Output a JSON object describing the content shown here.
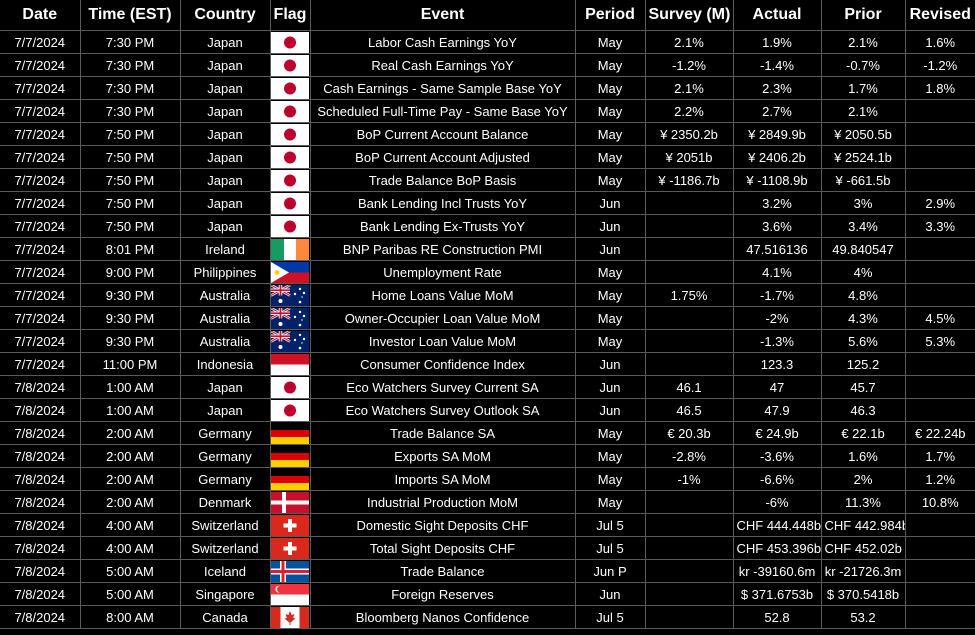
{
  "headers": {
    "date": "Date",
    "time": "Time (EST)",
    "country": "Country",
    "flag": "Flag",
    "event": "Event",
    "period": "Period",
    "survey": "Survey (M)",
    "actual": "Actual",
    "prior": "Prior",
    "revised": "Revised"
  },
  "rows": [
    {
      "date": "7/7/2024",
      "time": "7:30 PM",
      "country": "Japan",
      "flag": "japan-flag-icon",
      "event": "Labor Cash Earnings YoY",
      "period": "May",
      "survey": "2.1%",
      "actual": "1.9%",
      "prior": "2.1%",
      "revised": "1.6%"
    },
    {
      "date": "7/7/2024",
      "time": "7:30 PM",
      "country": "Japan",
      "flag": "japan-flag-icon",
      "event": "Real Cash Earnings YoY",
      "period": "May",
      "survey": "-1.2%",
      "actual": "-1.4%",
      "prior": "-0.7%",
      "revised": "-1.2%"
    },
    {
      "date": "7/7/2024",
      "time": "7:30 PM",
      "country": "Japan",
      "flag": "japan-flag-icon",
      "event": "Cash Earnings - Same Sample Base YoY",
      "period": "May",
      "survey": "2.1%",
      "actual": "2.3%",
      "prior": "1.7%",
      "revised": "1.8%"
    },
    {
      "date": "7/7/2024",
      "time": "7:30 PM",
      "country": "Japan",
      "flag": "japan-flag-icon",
      "event": "Scheduled Full-Time Pay - Same Base YoY",
      "period": "May",
      "survey": "2.2%",
      "actual": "2.7%",
      "prior": "2.1%",
      "revised": ""
    },
    {
      "date": "7/7/2024",
      "time": "7:50 PM",
      "country": "Japan",
      "flag": "japan-flag-icon",
      "event": "BoP Current Account Balance",
      "period": "May",
      "survey": "¥ 2350.2b",
      "actual": "¥ 2849.9b",
      "prior": "¥ 2050.5b",
      "revised": ""
    },
    {
      "date": "7/7/2024",
      "time": "7:50 PM",
      "country": "Japan",
      "flag": "japan-flag-icon",
      "event": "BoP Current Account Adjusted",
      "period": "May",
      "survey": "¥ 2051b",
      "actual": "¥ 2406.2b",
      "prior": "¥ 2524.1b",
      "revised": ""
    },
    {
      "date": "7/7/2024",
      "time": "7:50 PM",
      "country": "Japan",
      "flag": "japan-flag-icon",
      "event": "Trade Balance BoP Basis",
      "period": "May",
      "survey": "¥ -1186.7b",
      "actual": "¥ -1108.9b",
      "prior": "¥ -661.5b",
      "revised": ""
    },
    {
      "date": "7/7/2024",
      "time": "7:50 PM",
      "country": "Japan",
      "flag": "japan-flag-icon",
      "event": "Bank Lending Incl Trusts YoY",
      "period": "Jun",
      "survey": "",
      "actual": "3.2%",
      "prior": "3%",
      "revised": "2.9%"
    },
    {
      "date": "7/7/2024",
      "time": "7:50 PM",
      "country": "Japan",
      "flag": "japan-flag-icon",
      "event": "Bank Lending Ex-Trusts YoY",
      "period": "Jun",
      "survey": "",
      "actual": "3.6%",
      "prior": "3.4%",
      "revised": "3.3%"
    },
    {
      "date": "7/7/2024",
      "time": "8:01 PM",
      "country": "Ireland",
      "flag": "ireland-flag-icon",
      "event": "BNP Paribas RE Construction PMI",
      "period": "Jun",
      "survey": "",
      "actual": "47.516136",
      "prior": "49.840547",
      "revised": ""
    },
    {
      "date": "7/7/2024",
      "time": "9:00 PM",
      "country": "Philippines",
      "flag": "philippines-flag-icon",
      "event": "Unemployment Rate",
      "period": "May",
      "survey": "",
      "actual": "4.1%",
      "prior": "4%",
      "revised": ""
    },
    {
      "date": "7/7/2024",
      "time": "9:30 PM",
      "country": "Australia",
      "flag": "australia-flag-icon",
      "event": "Home Loans Value MoM",
      "period": "May",
      "survey": "1.75%",
      "actual": "-1.7%",
      "prior": "4.8%",
      "revised": ""
    },
    {
      "date": "7/7/2024",
      "time": "9:30 PM",
      "country": "Australia",
      "flag": "australia-flag-icon",
      "event": "Owner-Occupier Loan Value MoM",
      "period": "May",
      "survey": "",
      "actual": "-2%",
      "prior": "4.3%",
      "revised": "4.5%"
    },
    {
      "date": "7/7/2024",
      "time": "9:30 PM",
      "country": "Australia",
      "flag": "australia-flag-icon",
      "event": "Investor Loan Value MoM",
      "period": "May",
      "survey": "",
      "actual": "-1.3%",
      "prior": "5.6%",
      "revised": "5.3%"
    },
    {
      "date": "7/7/2024",
      "time": "11:00 PM",
      "country": "Indonesia",
      "flag": "indonesia-flag-icon",
      "event": "Consumer Confidence Index",
      "period": "Jun",
      "survey": "",
      "actual": "123.3",
      "prior": "125.2",
      "revised": ""
    },
    {
      "date": "7/8/2024",
      "time": "1:00 AM",
      "country": "Japan",
      "flag": "japan-flag-icon",
      "event": "Eco Watchers Survey Current SA",
      "period": "Jun",
      "survey": "46.1",
      "actual": "47",
      "prior": "45.7",
      "revised": ""
    },
    {
      "date": "7/8/2024",
      "time": "1:00 AM",
      "country": "Japan",
      "flag": "japan-flag-icon",
      "event": "Eco Watchers Survey Outlook SA",
      "period": "Jun",
      "survey": "46.5",
      "actual": "47.9",
      "prior": "46.3",
      "revised": ""
    },
    {
      "date": "7/8/2024",
      "time": "2:00 AM",
      "country": "Germany",
      "flag": "germany-flag-icon",
      "event": "Trade Balance SA",
      "period": "May",
      "survey": "€ 20.3b",
      "actual": "€ 24.9b",
      "prior": "€ 22.1b",
      "revised": "€ 22.24b"
    },
    {
      "date": "7/8/2024",
      "time": "2:00 AM",
      "country": "Germany",
      "flag": "germany-flag-icon",
      "event": "Exports SA MoM",
      "period": "May",
      "survey": "-2.8%",
      "actual": "-3.6%",
      "prior": "1.6%",
      "revised": "1.7%"
    },
    {
      "date": "7/8/2024",
      "time": "2:00 AM",
      "country": "Germany",
      "flag": "germany-flag-icon",
      "event": "Imports SA MoM",
      "period": "May",
      "survey": "-1%",
      "actual": "-6.6%",
      "prior": "2%",
      "revised": "1.2%"
    },
    {
      "date": "7/8/2024",
      "time": "2:00 AM",
      "country": "Denmark",
      "flag": "denmark-flag-icon",
      "event": "Industrial Production MoM",
      "period": "May",
      "survey": "",
      "actual": "-6%",
      "prior": "11.3%",
      "revised": "10.8%"
    },
    {
      "date": "7/8/2024",
      "time": "4:00 AM",
      "country": "Switzerland",
      "flag": "switzerland-flag-icon",
      "event": "Domestic Sight Deposits CHF",
      "period": "Jul 5",
      "survey": "",
      "actual": "CHF 444.448b",
      "prior": "CHF 442.984b",
      "revised": ""
    },
    {
      "date": "7/8/2024",
      "time": "4:00 AM",
      "country": "Switzerland",
      "flag": "switzerland-flag-icon",
      "event": "Total Sight Deposits CHF",
      "period": "Jul 5",
      "survey": "",
      "actual": "CHF 453.396b",
      "prior": "CHF 452.02b",
      "revised": ""
    },
    {
      "date": "7/8/2024",
      "time": "5:00 AM",
      "country": "Iceland",
      "flag": "iceland-flag-icon",
      "event": "Trade Balance",
      "period": "Jun P",
      "survey": "",
      "actual": "kr -39160.6m",
      "prior": "kr -21726.3m",
      "revised": ""
    },
    {
      "date": "7/8/2024",
      "time": "5:00 AM",
      "country": "Singapore",
      "flag": "singapore-flag-icon",
      "event": "Foreign Reserves",
      "period": "Jun",
      "survey": "",
      "actual": "$ 371.6753b",
      "prior": "$ 370.5418b",
      "revised": ""
    },
    {
      "date": "7/8/2024",
      "time": "8:00 AM",
      "country": "Canada",
      "flag": "canada-flag-icon",
      "event": "Bloomberg Nanos Confidence",
      "period": "Jul 5",
      "survey": "",
      "actual": "52.8",
      "prior": "53.2",
      "revised": ""
    }
  ]
}
